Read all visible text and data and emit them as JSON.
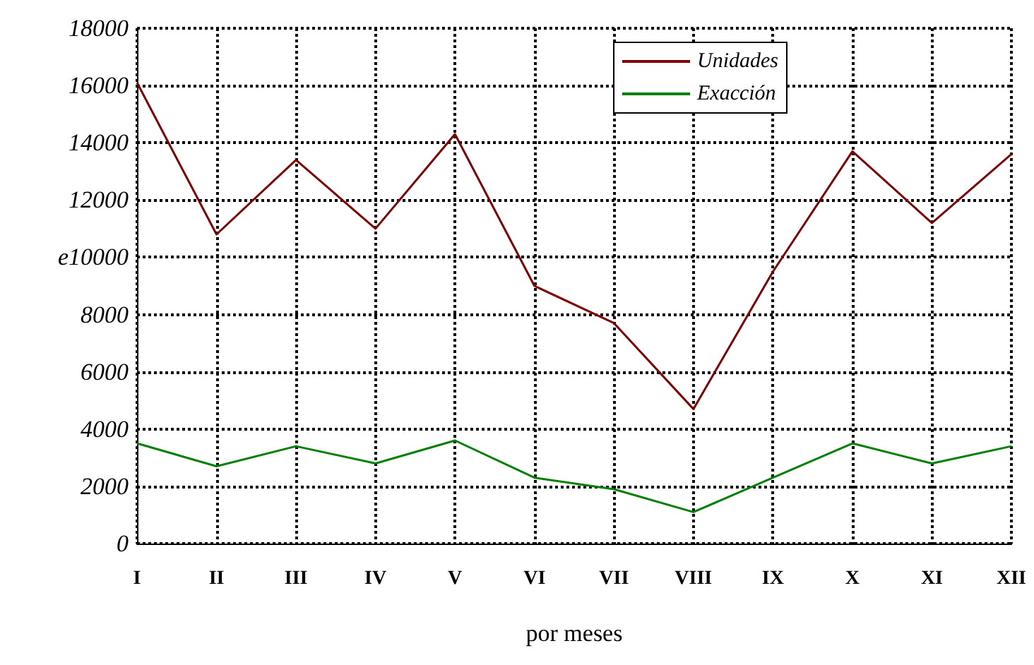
{
  "chart_data": {
    "type": "line",
    "xlabel": "por meses",
    "categories": [
      "I",
      "II",
      "III",
      "IV",
      "V",
      "VI",
      "VII",
      "VIII",
      "IX",
      "X",
      "XI",
      "XII"
    ],
    "series": [
      {
        "name": "Unidades",
        "color": "#800000",
        "values": [
          16100,
          10800,
          13400,
          11000,
          14300,
          9000,
          7700,
          4700,
          9500,
          13700,
          11200,
          13600
        ]
      },
      {
        "name": "Exacción",
        "color": "#008000",
        "values": [
          3500,
          2700,
          3400,
          2800,
          3600,
          2300,
          1900,
          1100,
          2300,
          3500,
          2800,
          3400
        ]
      }
    ],
    "ylim": [
      0,
      18000
    ],
    "yticks": [
      0,
      2000,
      4000,
      6000,
      8000,
      {
        "value": 10000,
        "label": "e10000"
      },
      12000,
      14000,
      16000,
      18000
    ],
    "grid": true,
    "legend": "top right",
    "marker": "none",
    "line_style": "solid"
  }
}
